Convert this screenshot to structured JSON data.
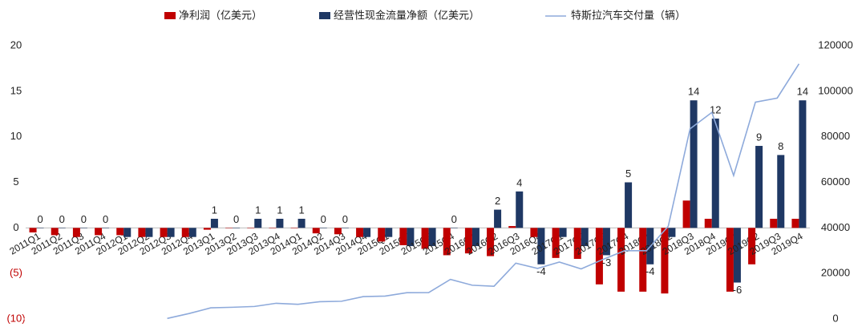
{
  "chart_data": {
    "type": "bar_line",
    "categories": [
      "2011Q1",
      "2011Q2",
      "2011Q3",
      "2011Q4",
      "2012Q1",
      "2012Q2",
      "2012Q3",
      "2012Q4",
      "2013Q1",
      "2013Q2",
      "2013Q3",
      "2013Q4",
      "2014Q1",
      "2014Q2",
      "2014Q3",
      "2014Q4",
      "2015Q1",
      "2015Q2",
      "2015Q3",
      "2015Q4",
      "2016Q1",
      "2016Q2",
      "2016Q3",
      "2016Q4",
      "2017Q1",
      "2017Q2",
      "2017Q3",
      "2017Q4",
      "2018Q1",
      "2018Q2",
      "2018Q3",
      "2018Q4",
      "2019Q1",
      "2019Q2",
      "2019Q3",
      "2019Q4"
    ],
    "series": [
      {
        "name": "净利润（亿美元）",
        "color": "#c00000",
        "kind": "bar",
        "values": [
          -0.5,
          -0.8,
          -1,
          -0.8,
          -0.8,
          -1,
          -1,
          -1,
          -0.2,
          0,
          0,
          0,
          0,
          -0.6,
          -0.7,
          -1,
          -1.5,
          -1.9,
          -2.3,
          -3,
          -2.8,
          -3.1,
          0.2,
          -1,
          -3.3,
          -3.4,
          -6.2,
          -7,
          -7,
          -7.2,
          3,
          1,
          -7,
          -4,
          1,
          1
        ]
      },
      {
        "name": "经营性现金流量净额（亿美元）",
        "color": "#1f3864",
        "kind": "bar",
        "values": [
          0,
          0,
          0,
          0,
          -1,
          -1,
          -1,
          -1,
          1,
          0,
          1,
          1,
          1,
          0,
          0,
          -1,
          -1,
          -2,
          -2,
          0,
          -2,
          2,
          4,
          -4,
          -1,
          -2,
          -3,
          5,
          -4,
          -1,
          14,
          12,
          -6,
          9,
          8,
          14
        ],
        "value_labels": [
          "0",
          "0",
          "0",
          "0",
          null,
          null,
          null,
          null,
          "1",
          "0",
          "1",
          "1",
          "1",
          "0",
          "0",
          null,
          null,
          null,
          null,
          "0",
          null,
          "2",
          "4",
          "-4",
          null,
          null,
          "-3",
          "5",
          "-4",
          null,
          "14",
          "12",
          "-6",
          "9",
          "8",
          "14"
        ]
      },
      {
        "name": "特斯拉汽车交付量（辆）",
        "color": "#8eaadb",
        "kind": "line",
        "axis": "y2",
        "values": [
          null,
          null,
          null,
          null,
          null,
          null,
          250,
          2400,
          4900,
          5150,
          5500,
          6900,
          6457,
          7579,
          7785,
          9834,
          10045,
          11532,
          11603,
          17400,
          14820,
          14370,
          24500,
          22200,
          25000,
          22000,
          26150,
          29967,
          29980,
          40740,
          83500,
          90700,
          63000,
          95200,
          97000,
          112000
        ]
      }
    ],
    "ylim": [
      -10,
      20
    ],
    "yticks": [
      {
        "value": -10,
        "label": "(10)"
      },
      {
        "value": -5,
        "label": "(5)"
      },
      0,
      5,
      10,
      15,
      20
    ],
    "negative_tick_color": "#c00000",
    "y2lim": [
      0,
      120000
    ],
    "y2ticks": [
      0,
      20000,
      40000,
      60000,
      80000,
      100000,
      120000
    ],
    "legend": "top"
  }
}
